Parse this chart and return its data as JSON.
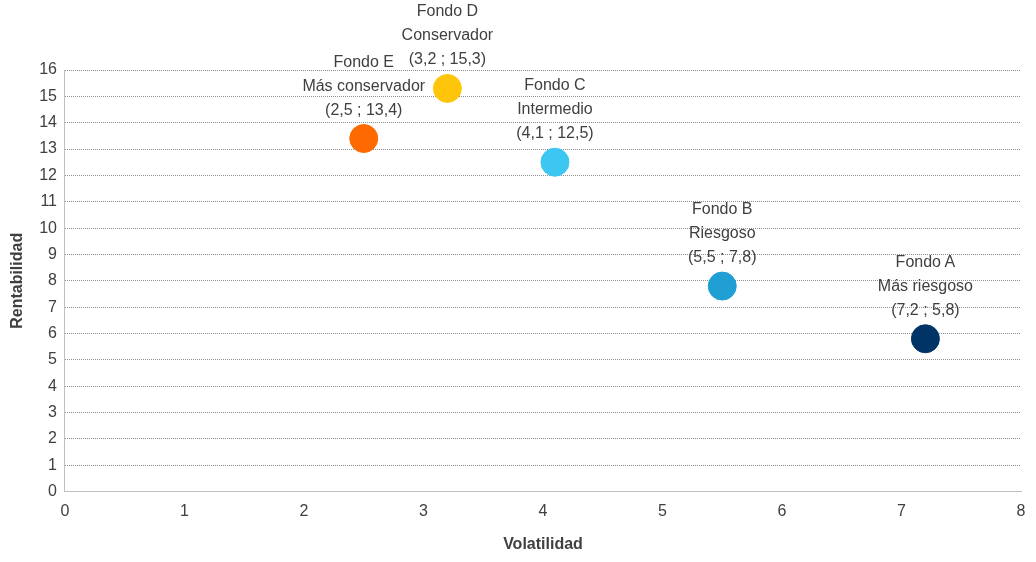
{
  "chart_data": {
    "type": "scatter",
    "xlabel": "Volatilidad",
    "ylabel": "Rentabilidad",
    "x": [
      7.2,
      5.5,
      4.1,
      3.2,
      2.5
    ],
    "values": [
      5.8,
      7.8,
      12.5,
      15.3,
      13.4
    ],
    "colors": [
      "#003366",
      "#1f9fd4",
      "#3cc6f2",
      "#ffc50a",
      "#ff6a00"
    ],
    "xlim": [
      0,
      8
    ],
    "xticks": [
      0,
      1,
      2,
      3,
      4,
      5,
      6,
      7,
      8
    ],
    "ylim": [
      0,
      16
    ],
    "yticks": [
      0,
      1,
      2,
      3,
      4,
      5,
      6,
      7,
      8,
      9,
      10,
      11,
      12,
      13,
      14,
      15,
      16
    ],
    "grid": "y",
    "legend": false,
    "marker": "circle",
    "annotations": [
      {
        "text": "Fondo A\nMás riesgoso\n(7,2 ; 5,8)",
        "x": 7.2,
        "y": 5.8
      },
      {
        "text": "Fondo B\nRiesgoso\n(5,5 ; 7,8)",
        "x": 5.5,
        "y": 7.8
      },
      {
        "text": "Fondo C\nIntermedio\n(4,1 ; 12,5)",
        "x": 4.1,
        "y": 12.5
      },
      {
        "text": "Fondo D\nConservador\n(3,2 ; 15,3)",
        "x": 3.2,
        "y": 15.3
      },
      {
        "text": "Fondo E\nMás conservador\n(2,5 ; 13,4)",
        "x": 2.5,
        "y": 13.4
      }
    ]
  }
}
